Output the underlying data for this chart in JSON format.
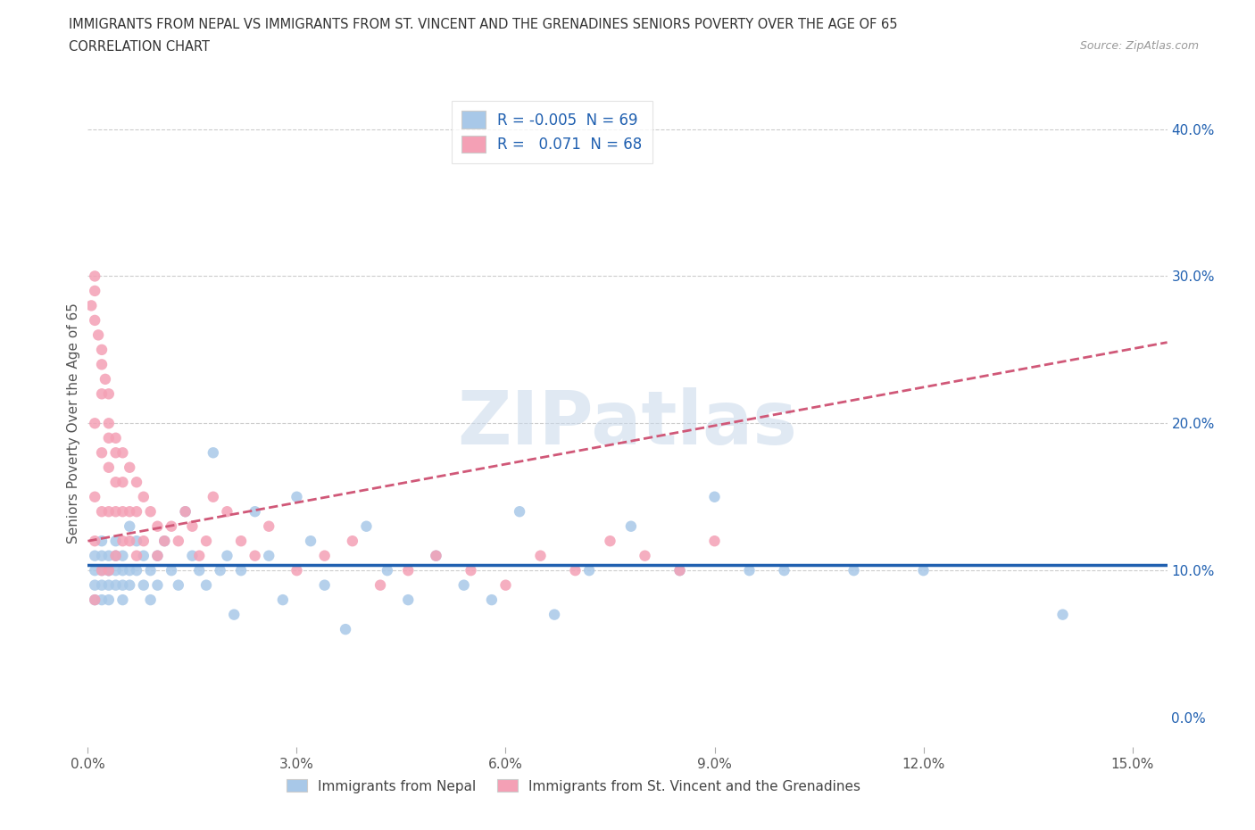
{
  "title_line1": "IMMIGRANTS FROM NEPAL VS IMMIGRANTS FROM ST. VINCENT AND THE GRENADINES SENIORS POVERTY OVER THE AGE OF 65",
  "title_line2": "CORRELATION CHART",
  "source": "Source: ZipAtlas.com",
  "ylabel": "Seniors Poverty Over the Age of 65",
  "xlim": [
    0.0,
    0.155
  ],
  "ylim": [
    -0.02,
    0.42
  ],
  "plot_ylim": [
    -0.02,
    0.42
  ],
  "xticks": [
    0.0,
    0.03,
    0.06,
    0.09,
    0.12,
    0.15
  ],
  "xticklabels": [
    "0.0%",
    "3.0%",
    "6.0%",
    "9.0%",
    "12.0%",
    "15.0%"
  ],
  "yticks_right": [
    0.0,
    0.1,
    0.2,
    0.3,
    0.4
  ],
  "yticklabels_right": [
    "0.0%",
    "10.0%",
    "20.0%",
    "30.0%",
    "40.0%"
  ],
  "hgrid_values": [
    0.1,
    0.2,
    0.3,
    0.4
  ],
  "color_nepal": "#a8c8e8",
  "color_stv": "#f4a0b5",
  "trendline_nepal_color": "#2060b0",
  "trendline_stv_color": "#d05878",
  "watermark_color": "#c8d8ea",
  "watermark_text": "ZIPatlas",
  "legend_R_nepal": "-0.005",
  "legend_N_nepal": "69",
  "legend_R_stv": "0.071",
  "legend_N_stv": "68",
  "nepal_x": [
    0.001,
    0.001,
    0.001,
    0.001,
    0.002,
    0.002,
    0.002,
    0.002,
    0.002,
    0.003,
    0.003,
    0.003,
    0.003,
    0.003,
    0.004,
    0.004,
    0.004,
    0.004,
    0.005,
    0.005,
    0.005,
    0.005,
    0.006,
    0.006,
    0.006,
    0.007,
    0.007,
    0.008,
    0.008,
    0.009,
    0.009,
    0.01,
    0.01,
    0.011,
    0.012,
    0.013,
    0.014,
    0.015,
    0.016,
    0.017,
    0.018,
    0.019,
    0.02,
    0.021,
    0.022,
    0.024,
    0.026,
    0.028,
    0.03,
    0.032,
    0.034,
    0.037,
    0.04,
    0.043,
    0.046,
    0.05,
    0.054,
    0.058,
    0.062,
    0.067,
    0.072,
    0.078,
    0.085,
    0.09,
    0.095,
    0.1,
    0.11,
    0.12,
    0.14
  ],
  "nepal_y": [
    0.1,
    0.09,
    0.08,
    0.11,
    0.1,
    0.09,
    0.11,
    0.08,
    0.12,
    0.1,
    0.09,
    0.11,
    0.08,
    0.1,
    0.09,
    0.11,
    0.1,
    0.12,
    0.09,
    0.1,
    0.11,
    0.08,
    0.1,
    0.13,
    0.09,
    0.1,
    0.12,
    0.09,
    0.11,
    0.1,
    0.08,
    0.11,
    0.09,
    0.12,
    0.1,
    0.09,
    0.14,
    0.11,
    0.1,
    0.09,
    0.18,
    0.1,
    0.11,
    0.07,
    0.1,
    0.14,
    0.11,
    0.08,
    0.15,
    0.12,
    0.09,
    0.06,
    0.13,
    0.1,
    0.08,
    0.11,
    0.09,
    0.08,
    0.14,
    0.07,
    0.1,
    0.13,
    0.1,
    0.15,
    0.1,
    0.1,
    0.1,
    0.1,
    0.07
  ],
  "stv_x": [
    0.0005,
    0.001,
    0.001,
    0.001,
    0.001,
    0.001,
    0.001,
    0.001,
    0.0015,
    0.002,
    0.002,
    0.002,
    0.002,
    0.002,
    0.002,
    0.0025,
    0.003,
    0.003,
    0.003,
    0.003,
    0.003,
    0.003,
    0.004,
    0.004,
    0.004,
    0.004,
    0.004,
    0.005,
    0.005,
    0.005,
    0.005,
    0.006,
    0.006,
    0.006,
    0.007,
    0.007,
    0.007,
    0.008,
    0.008,
    0.009,
    0.01,
    0.01,
    0.011,
    0.012,
    0.013,
    0.014,
    0.015,
    0.016,
    0.017,
    0.018,
    0.02,
    0.022,
    0.024,
    0.026,
    0.03,
    0.034,
    0.038,
    0.042,
    0.046,
    0.05,
    0.055,
    0.06,
    0.065,
    0.07,
    0.075,
    0.08,
    0.085,
    0.09
  ],
  "stv_y": [
    0.28,
    0.3,
    0.29,
    0.27,
    0.2,
    0.15,
    0.12,
    0.08,
    0.26,
    0.25,
    0.24,
    0.22,
    0.18,
    0.14,
    0.1,
    0.23,
    0.22,
    0.2,
    0.19,
    0.17,
    0.14,
    0.1,
    0.19,
    0.18,
    0.16,
    0.14,
    0.11,
    0.18,
    0.16,
    0.14,
    0.12,
    0.17,
    0.14,
    0.12,
    0.16,
    0.14,
    0.11,
    0.15,
    0.12,
    0.14,
    0.13,
    0.11,
    0.12,
    0.13,
    0.12,
    0.14,
    0.13,
    0.11,
    0.12,
    0.15,
    0.14,
    0.12,
    0.11,
    0.13,
    0.1,
    0.11,
    0.12,
    0.09,
    0.1,
    0.11,
    0.1,
    0.09,
    0.11,
    0.1,
    0.12,
    0.11,
    0.1,
    0.12
  ],
  "nepal_trendline_x": [
    0.0,
    0.155
  ],
  "nepal_trendline_y": [
    0.104,
    0.104
  ],
  "stv_trendline_x": [
    0.0,
    0.155
  ],
  "stv_trendline_y": [
    0.12,
    0.255
  ]
}
